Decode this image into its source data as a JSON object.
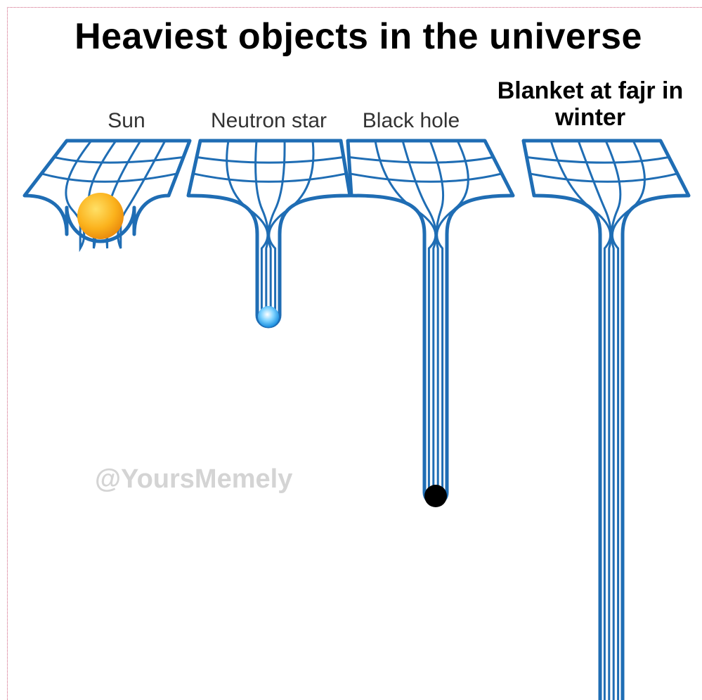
{
  "title": "Heaviest objects in the universe",
  "panels": [
    {
      "label": "Sun"
    },
    {
      "label": "Neutron star"
    },
    {
      "label": "Black hole"
    },
    {
      "label": "Blanket at fajr in winter"
    }
  ],
  "watermark": "@YoursMemely"
}
